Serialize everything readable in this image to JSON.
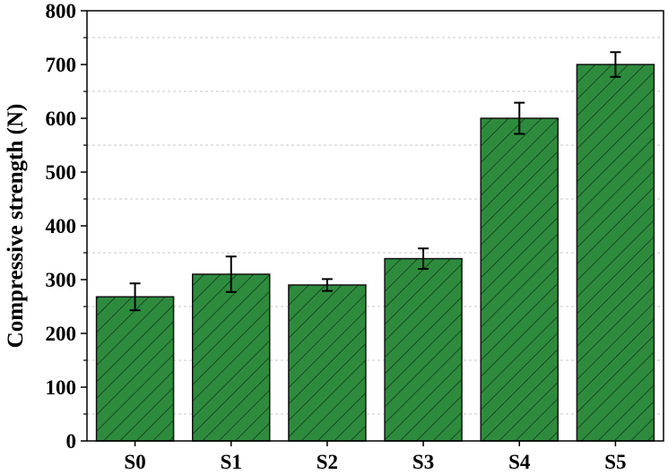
{
  "chart_data": {
    "type": "bar",
    "title": "",
    "xlabel": "",
    "ylabel": "Compressive strength (N)",
    "categories": [
      "S0",
      "S1",
      "S2",
      "S3",
      "S4",
      "S5"
    ],
    "values": [
      268,
      310,
      290,
      339,
      600,
      700
    ],
    "errors": [
      25,
      33,
      11,
      19,
      29,
      23
    ],
    "ylim": [
      0,
      800
    ],
    "yticks": [
      0,
      100,
      200,
      300,
      400,
      500,
      600,
      700,
      800
    ],
    "grid": "horizontal dashed (minor, every 50)",
    "bar_color": "#2e8b3e",
    "hatch": "diagonal lines"
  }
}
